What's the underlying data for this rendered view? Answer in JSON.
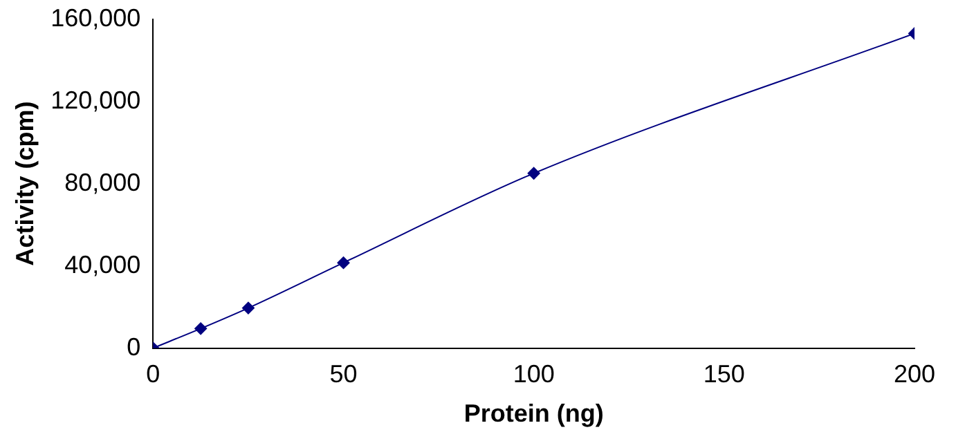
{
  "chart_data": {
    "type": "line",
    "xlabel": "Protein (ng)",
    "ylabel": "Activity (cpm)",
    "x": [
      0,
      12.5,
      25,
      50,
      100,
      200
    ],
    "series": [
      {
        "color": "#000080",
        "values": [
          0,
          9500,
          19500,
          41500,
          85000,
          153000
        ]
      }
    ],
    "xlim": [
      0,
      200
    ],
    "xticks": [
      0,
      50,
      100,
      150,
      200
    ],
    "ylim": [
      0,
      160000
    ],
    "yticks": [
      {
        "value": 0,
        "label": "0"
      },
      {
        "value": 40000,
        "label": "40,000"
      },
      {
        "value": 80000,
        "label": "80,000"
      },
      {
        "value": 120000,
        "label": "120,000"
      },
      {
        "value": 160000,
        "label": "160,000"
      }
    ],
    "grid": false,
    "legend": false,
    "marker": "diamond",
    "line_style": "solid"
  }
}
